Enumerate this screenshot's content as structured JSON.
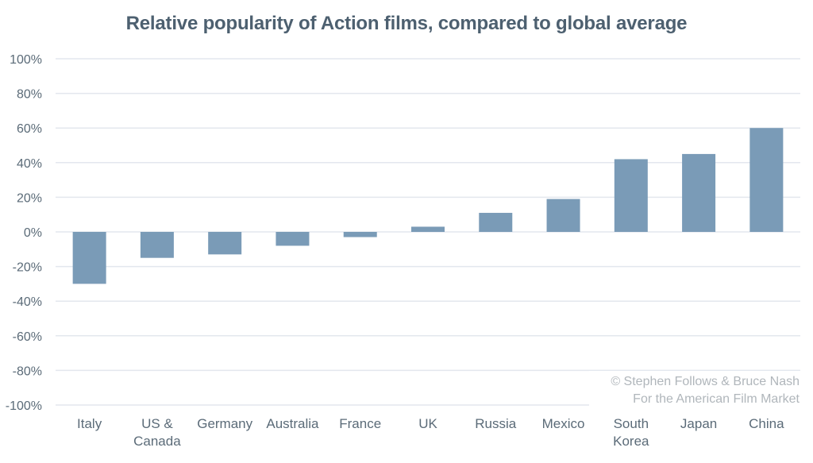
{
  "chart_data": {
    "type": "bar",
    "title": "Relative popularity of Action films, compared to global average",
    "xlabel": "",
    "ylabel": "",
    "categories": [
      [
        "Italy"
      ],
      [
        "US &",
        "Canada"
      ],
      [
        "Germany"
      ],
      [
        "Australia"
      ],
      [
        "France"
      ],
      [
        "UK"
      ],
      [
        "Russia"
      ],
      [
        "Mexico"
      ],
      [
        "South",
        "Korea"
      ],
      [
        "Japan"
      ],
      [
        "China"
      ]
    ],
    "values": [
      -30,
      -15,
      -13,
      -8,
      -3,
      3,
      11,
      19,
      42,
      45,
      60
    ],
    "ylim": [
      -100,
      100
    ],
    "yticks": [
      100,
      80,
      60,
      40,
      20,
      0,
      -20,
      -40,
      -60,
      -80,
      -100
    ],
    "ytick_labels": [
      "100%",
      "80%",
      "60%",
      "40%",
      "20%",
      "0%",
      "-20%",
      "-40%",
      "-60%",
      "-80%",
      "-100%"
    ],
    "grid": true,
    "legend": "none",
    "bar_color": "#7a9bb7",
    "grid_color": "#e3e7ee",
    "annotations": [
      "© Stephen Follows & Bruce Nash",
      "For the American Film Market"
    ]
  }
}
